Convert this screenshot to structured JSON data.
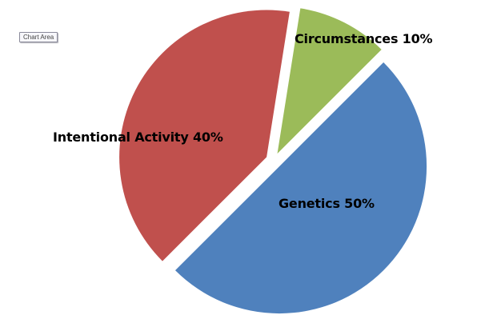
{
  "tooltip": {
    "label": "Chart Area"
  },
  "chart_data": {
    "type": "pie",
    "title": "",
    "exploded": true,
    "slices": [
      {
        "label": "Genetics",
        "value": 50,
        "display": "Genetics 50%",
        "color": "#4F81BD"
      },
      {
        "label": "Intentional Activity",
        "value": 40,
        "display": "Intentional Activity 40%",
        "color": "#C0504D"
      },
      {
        "label": "Circumstances",
        "value": 10,
        "display": "Circumstances 10%",
        "color": "#9BBB59"
      }
    ],
    "legend": "none",
    "data_labels": "category name and percentage, inside slices"
  }
}
